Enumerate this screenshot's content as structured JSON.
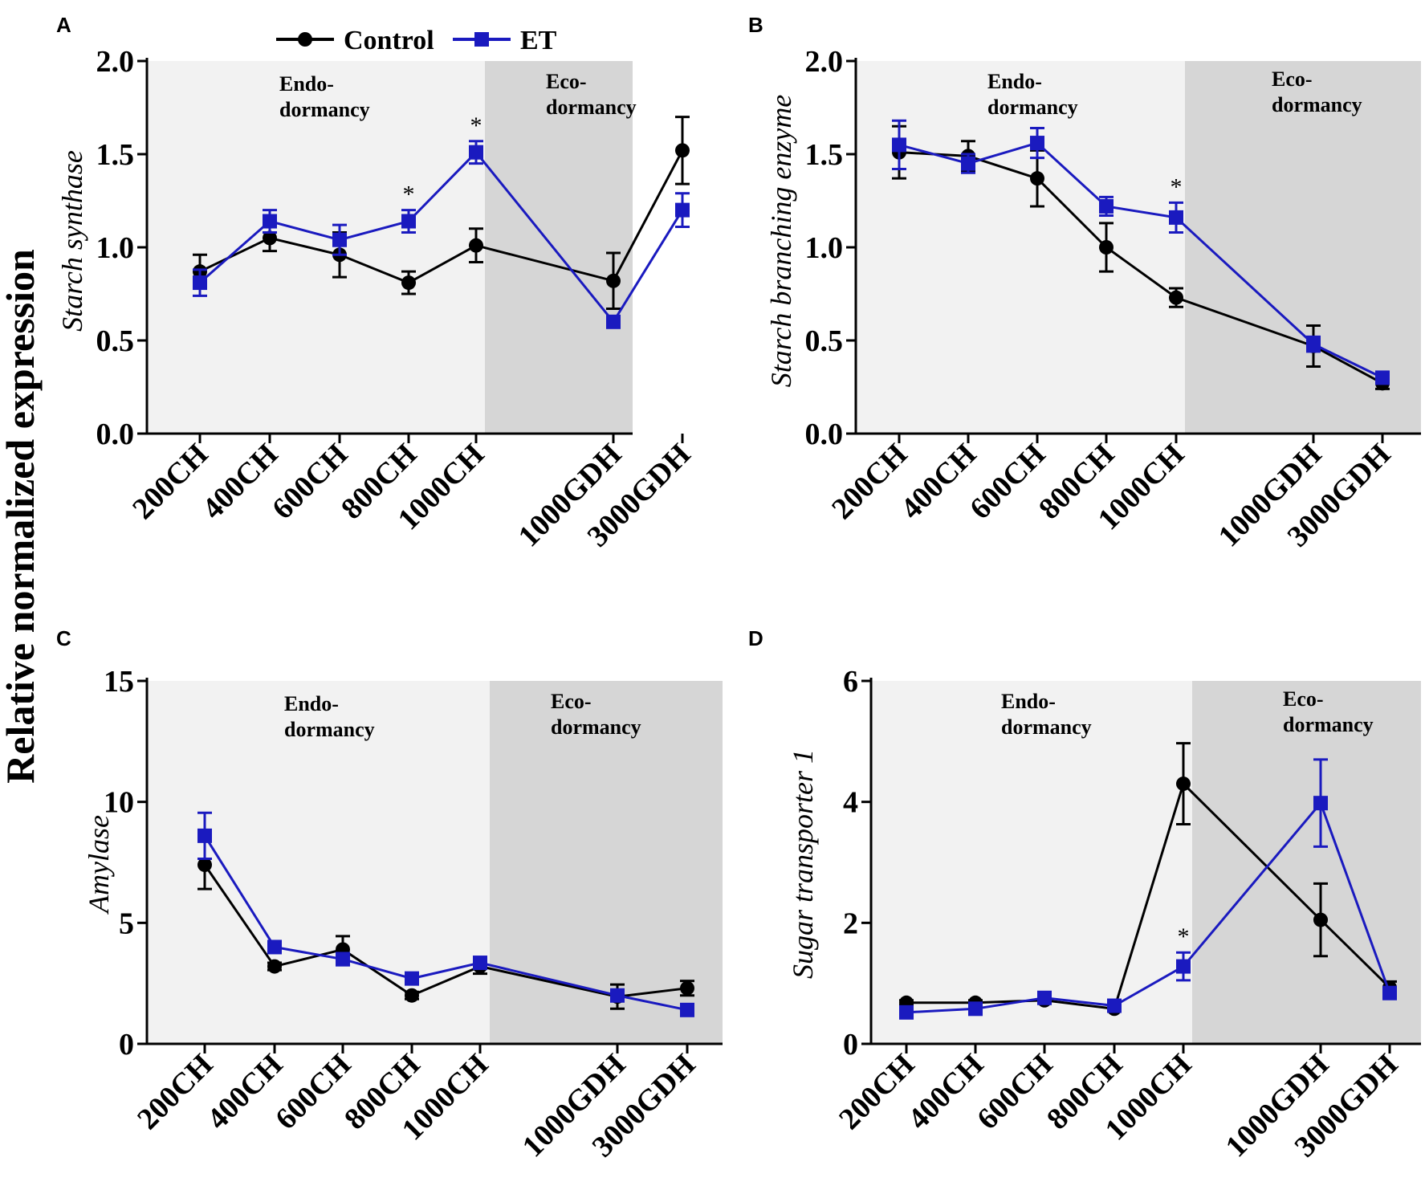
{
  "chart_data": {
    "type": "line",
    "global_ylabel": "Relative normalized expression",
    "legend": [
      {
        "name": "Control",
        "color": "#000000",
        "marker": "circle"
      },
      {
        "name": "ET",
        "color": "#1a1abf",
        "marker": "square"
      }
    ],
    "colors": {
      "control": "#000000",
      "et": "#1a1abf",
      "endo_bg": "#f2f2f2",
      "eco_bg": "#d6d6d6"
    },
    "panels": [
      {
        "letter": "A",
        "ylabel": "Starch synthase",
        "ylim": [
          0,
          2.0
        ],
        "yticks": [
          "0.0",
          "0.5",
          "1.0",
          "1.5",
          "2.0"
        ],
        "ytick_values": [
          0,
          0.5,
          1.0,
          1.5,
          2.0
        ],
        "categories": [
          "200CH",
          "400CH",
          "600CH",
          "800CH",
          "1000CH",
          "1000GDH",
          "3000GDH"
        ],
        "regions": [
          {
            "line1": "Endo-",
            "line2": "dormancy"
          },
          {
            "line1": "Eco-",
            "line2": "dormancy"
          }
        ],
        "series": [
          {
            "name": "Control",
            "values": [
              0.87,
              1.05,
              0.96,
              0.81,
              1.01,
              0.82,
              1.52
            ],
            "errors": [
              0.09,
              0.07,
              0.12,
              0.06,
              0.09,
              0.15,
              0.18
            ]
          },
          {
            "name": "ET",
            "values": [
              0.81,
              1.14,
              1.04,
              1.14,
              1.51,
              0.6,
              1.2
            ],
            "errors": [
              0.07,
              0.06,
              0.08,
              0.06,
              0.06,
              0.03,
              0.09
            ]
          }
        ],
        "significance": [
          {
            "index": 3,
            "label": "*"
          },
          {
            "index": 4,
            "label": "*"
          }
        ]
      },
      {
        "letter": "B",
        "ylabel": "Starch branching enzyme",
        "ylim": [
          0,
          2.0
        ],
        "yticks": [
          "0.0",
          "0.5",
          "1.0",
          "1.5",
          "2.0"
        ],
        "ytick_values": [
          0,
          0.5,
          1.0,
          1.5,
          2.0
        ],
        "categories": [
          "200CH",
          "400CH",
          "600CH",
          "800CH",
          "1000CH",
          "1000GDH",
          "3000GDH"
        ],
        "regions": [
          {
            "line1": "Endo-",
            "line2": "dormancy"
          },
          {
            "line1": "Eco-",
            "line2": "dormancy"
          }
        ],
        "series": [
          {
            "name": "Control",
            "values": [
              1.51,
              1.49,
              1.37,
              1.0,
              0.73,
              0.47,
              0.27
            ],
            "errors": [
              0.14,
              0.08,
              0.15,
              0.13,
              0.05,
              0.11,
              0.03
            ]
          },
          {
            "name": "ET",
            "values": [
              1.55,
              1.45,
              1.56,
              1.22,
              1.16,
              0.48,
              0.3
            ],
            "errors": [
              0.13,
              0.05,
              0.08,
              0.05,
              0.08,
              0.04,
              0.02
            ]
          }
        ],
        "significance": [
          {
            "index": 4,
            "label": "*"
          }
        ]
      },
      {
        "letter": "C",
        "ylabel": "Amylase",
        "ylim": [
          0,
          15
        ],
        "yticks": [
          "0",
          "5",
          "10",
          "15"
        ],
        "ytick_values": [
          0,
          5,
          10,
          15
        ],
        "categories": [
          "200CH",
          "400CH",
          "600CH",
          "800CH",
          "1000CH",
          "1000GDH",
          "3000GDH"
        ],
        "regions": [
          {
            "line1": "Endo-",
            "line2": "dormancy"
          },
          {
            "line1": "Eco-",
            "line2": "dormancy"
          }
        ],
        "series": [
          {
            "name": "Control",
            "values": [
              7.4,
              3.2,
              3.9,
              2.0,
              3.2,
              1.95,
              2.3
            ],
            "errors": [
              1.0,
              0.15,
              0.55,
              0.15,
              0.3,
              0.5,
              0.3
            ]
          },
          {
            "name": "ET",
            "values": [
              8.6,
              4.0,
              3.5,
              2.7,
              3.35,
              2.0,
              1.4
            ],
            "errors": [
              0.95,
              0.15,
              0.25,
              0.15,
              0.2,
              0.2,
              0.15
            ]
          }
        ],
        "significance": []
      },
      {
        "letter": "D",
        "ylabel": "Sugar transporter 1",
        "ylim": [
          0,
          6
        ],
        "yticks": [
          "0",
          "2",
          "4",
          "6"
        ],
        "ytick_values": [
          0,
          2,
          4,
          6
        ],
        "categories": [
          "200CH",
          "400CH",
          "600CH",
          "800CH",
          "1000CH",
          "1000GDH",
          "3000GDH"
        ],
        "regions": [
          {
            "line1": "Endo-",
            "line2": "dormancy"
          },
          {
            "line1": "Eco-",
            "line2": "dormancy"
          }
        ],
        "series": [
          {
            "name": "Control",
            "values": [
              0.68,
              0.68,
              0.72,
              0.58,
              4.3,
              2.05,
              0.93
            ],
            "errors": [
              0.04,
              0.04,
              0.04,
              0.04,
              0.67,
              0.6,
              0.1
            ]
          },
          {
            "name": "ET",
            "values": [
              0.52,
              0.58,
              0.76,
              0.63,
              1.28,
              3.98,
              0.84
            ],
            "errors": [
              0.05,
              0.04,
              0.05,
              0.05,
              0.23,
              0.72,
              0.08
            ]
          }
        ],
        "significance": [
          {
            "index": 4,
            "label": "*"
          }
        ]
      }
    ]
  }
}
